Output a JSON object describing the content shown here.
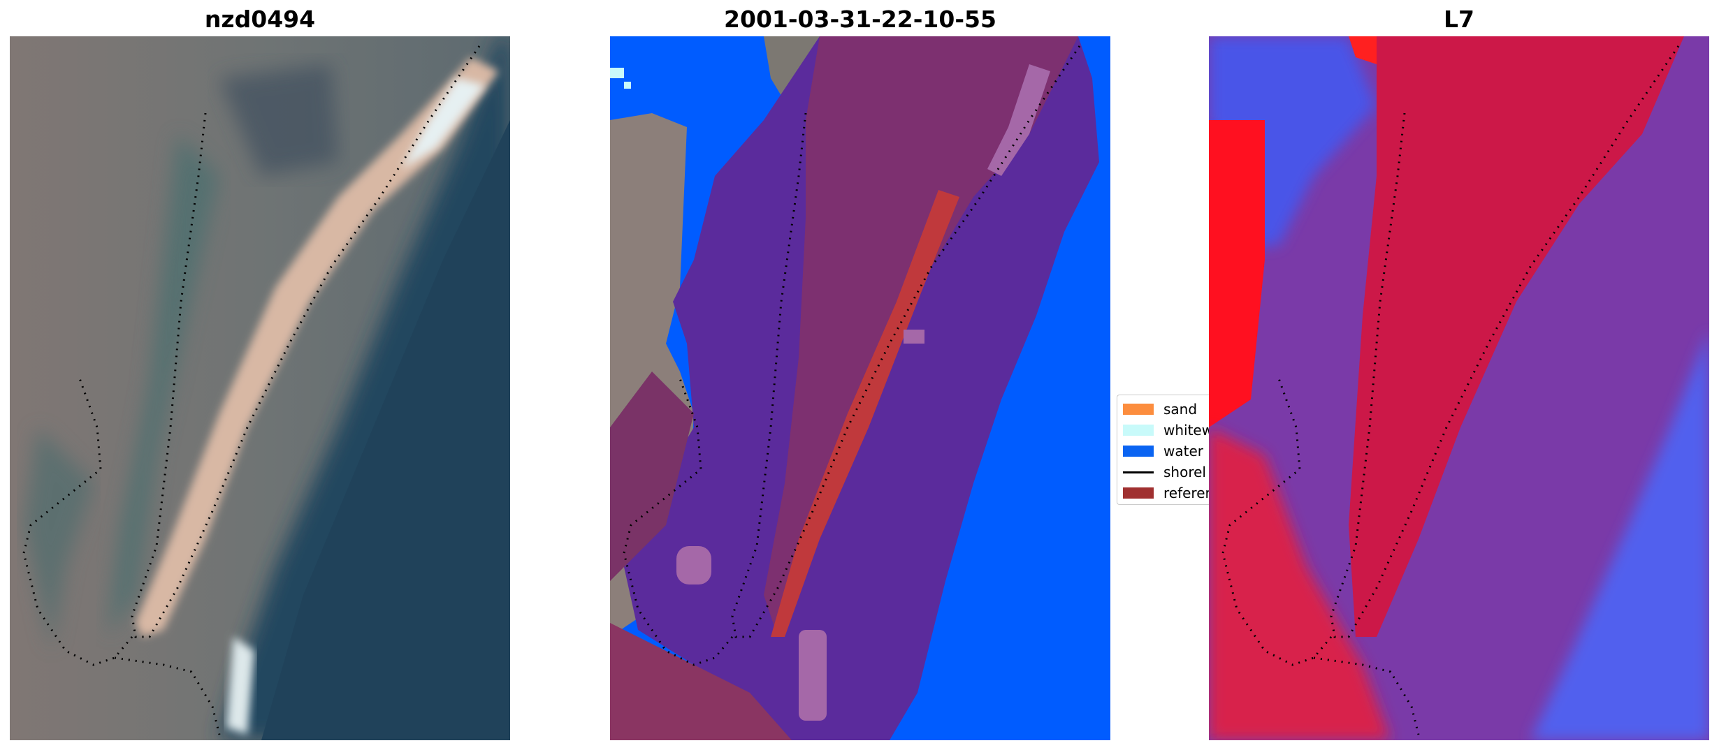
{
  "panels": [
    {
      "title": "nzd0494"
    },
    {
      "title": "2001-03-31-22-10-55"
    },
    {
      "title": "L7"
    }
  ],
  "legend": {
    "items": [
      {
        "label": "sand",
        "color": "#fc8d3e",
        "kind": "patch"
      },
      {
        "label": "whitew",
        "color": "#c8fafa",
        "kind": "patch"
      },
      {
        "label": "water",
        "color": "#0a64f2",
        "kind": "patch"
      },
      {
        "label": "shorel",
        "color": "#000000",
        "kind": "line"
      },
      {
        "label": "referer",
        "color": "#a03030",
        "kind": "patch"
      }
    ]
  },
  "colors": {
    "land_rgb": "#7a7470",
    "sea_rgb": "#23445c",
    "sandspit": "#e2c0a8",
    "class_water": "#005cff",
    "class_overlay": "#5b2b9c",
    "class_land": "#8a3a66",
    "index_red": "#e0103a",
    "index_blue": "#4a55e8"
  },
  "icons": [
    "dotted-shoreline",
    "legend-line-icon"
  ]
}
